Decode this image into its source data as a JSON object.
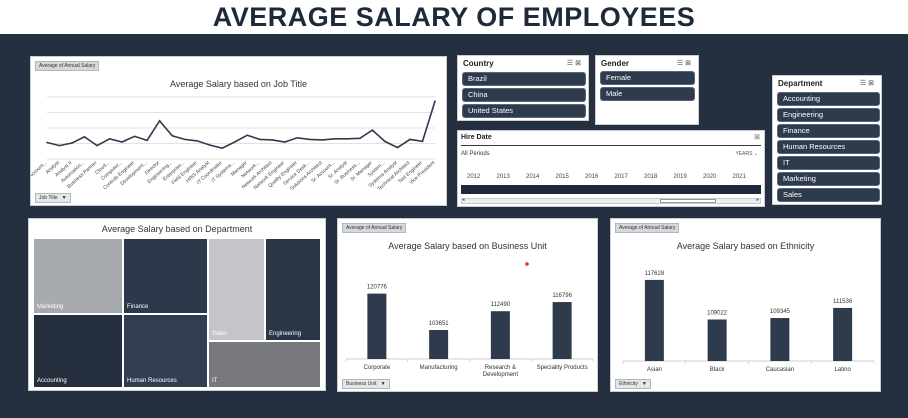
{
  "title": "AVERAGE SALARY OF EMPLOYEES",
  "job_chart": {
    "field_tag": "Average of Annual Salary",
    "title": "Average Salary based on Job Title",
    "axis_dropdown": "Job Title",
    "chart_data": {
      "type": "line",
      "title": "Average Salary based on Job Title",
      "categories": [
        "Account...",
        "Analyst",
        "Analyst II",
        "Automation...",
        "Business Partner",
        "Cloud...",
        "Computer...",
        "Controls Engineer",
        "Development...",
        "Director",
        "Engineering...",
        "Enterprise...",
        "Field Engineer",
        "HRIS Analyst",
        "IT Coordinator",
        "IT Systems...",
        "Manager",
        "Network...",
        "Network Architect",
        "Network Engineer",
        "Quality Engineer",
        "Service Desk...",
        "Solutions Architect",
        "Sr. Account...",
        "Sr. Analyst",
        "Sr. Business...",
        "Sr. Manager",
        "System...",
        "Systems Analyst",
        "Technical Architect",
        "Test Engineer",
        "Vice President"
      ],
      "values": [
        72000,
        66000,
        71000,
        83000,
        66000,
        79000,
        73000,
        84000,
        76000,
        114000,
        85000,
        78000,
        75000,
        67000,
        61000,
        73000,
        86000,
        78000,
        77000,
        73000,
        81000,
        78000,
        77000,
        79000,
        79000,
        80000,
        96000,
        74000,
        62000,
        78000,
        74000,
        152000
      ],
      "ylim": [
        40000,
        160000
      ],
      "grid": true,
      "legend": "none"
    }
  },
  "country_slicer": {
    "title": "Country",
    "items": [
      "Brazil",
      "China",
      "United States"
    ]
  },
  "gender_slicer": {
    "title": "Gender",
    "items": [
      "Female",
      "Male"
    ]
  },
  "department_slicer": {
    "title": "Department",
    "items": [
      "Accounting",
      "Engineering",
      "Finance",
      "Human Resources",
      "IT",
      "Marketing",
      "Sales"
    ]
  },
  "hire_date": {
    "title": "Hire Date",
    "period_label": "All Periods",
    "level": "YEARS",
    "years": [
      "2012",
      "2013",
      "2014",
      "2015",
      "2016",
      "2017",
      "2018",
      "2019",
      "2020",
      "2021"
    ]
  },
  "dept_chart": {
    "title": "Average Salary based on Department",
    "chart_data": {
      "type": "heatmap",
      "title": "Average Salary based on Department",
      "categories": [
        "Marketing",
        "Accounting",
        "Finance",
        "Human Resources",
        "Sales",
        "IT",
        "Engineering"
      ],
      "colors": [
        "#a6a9ad",
        "#252f3d",
        "#2c394b",
        "#313e51",
        "#c3c5c8",
        "#77797d",
        "#2a3646"
      ]
    }
  },
  "bu_chart": {
    "field_tag": "Average of Annual Salary",
    "title": "Average Salary based on Business Unit",
    "axis_dropdown": "Business Unit",
    "chart_data": {
      "type": "bar",
      "title": "Average Salary based on Business Unit",
      "categories": [
        "Corporate",
        "Manufacturing",
        "Research & Development",
        "Speciality Products"
      ],
      "values": [
        120776,
        103651,
        112490,
        116796
      ],
      "ylim": [
        90000,
        130000
      ],
      "grid": false,
      "legend": "none"
    }
  },
  "eth_chart": {
    "field_tag": "Average of Annual Salary",
    "title": "Average Salary based on Ethnicity",
    "axis_dropdown": "Ethnicity",
    "chart_data": {
      "type": "bar",
      "title": "Average Salary based on Ethnicity",
      "categories": [
        "Asian",
        "Black",
        "Caucasian",
        "Latino"
      ],
      "values": [
        117628,
        109022,
        109345,
        111536
      ],
      "ylim": [
        100000,
        120000
      ],
      "grid": false,
      "legend": "none"
    }
  },
  "colors": {
    "bar": "#2e3b4d",
    "line": "#2e3b4d",
    "background": "#24303f"
  }
}
